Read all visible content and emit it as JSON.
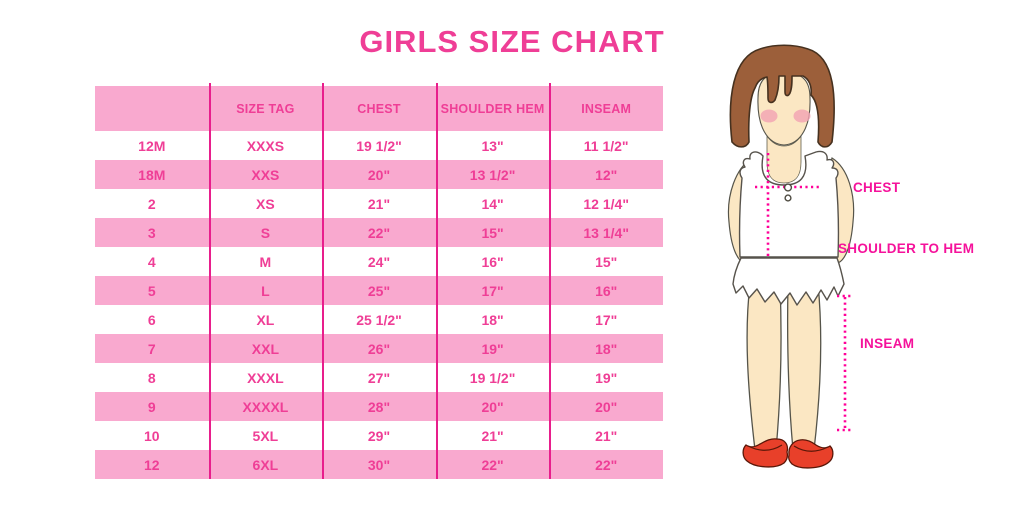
{
  "title": "GIRLS SIZE CHART",
  "chart_data": {
    "type": "table",
    "title": "GIRLS SIZE CHART",
    "columns": [
      "",
      "SIZE TAG",
      "CHEST",
      "SHOULDER HEM",
      "INSEAM"
    ],
    "rows": [
      [
        "12M",
        "XXXS",
        "19 1/2\"",
        "13\"",
        "11 1/2\""
      ],
      [
        "18M",
        "XXS",
        "20\"",
        "13 1/2\"",
        "12\""
      ],
      [
        "2",
        "XS",
        "21\"",
        "14\"",
        "12 1/4\""
      ],
      [
        "3",
        "S",
        "22\"",
        "15\"",
        "13 1/4\""
      ],
      [
        "4",
        "M",
        "24\"",
        "16\"",
        "15\""
      ],
      [
        "5",
        "L",
        "25\"",
        "17\"",
        "16\""
      ],
      [
        "6",
        "XL",
        "25 1/2\"",
        "18\"",
        "17\""
      ],
      [
        "7",
        "XXL",
        "26\"",
        "19\"",
        "18\""
      ],
      [
        "8",
        "XXXL",
        "27\"",
        "19 1/2\"",
        "19\""
      ],
      [
        "9",
        "XXXXL",
        "28\"",
        "20\"",
        "20\""
      ],
      [
        "10",
        "5XL",
        "29\"",
        "21\"",
        "21\""
      ],
      [
        "12",
        "6XL",
        "30\"",
        "22\"",
        "22\""
      ]
    ],
    "layout_hints": "rows alternate white/pink starting with white under pink header; magenta column separator lines"
  },
  "diagram": {
    "chest_label": "CHEST",
    "shoulder_to_hem_label": "SHOULDER TO HEM",
    "inseam_label": "INSEAM"
  },
  "colors": {
    "accent_text": "#EF3E96",
    "row_pink": "#F9A9CF",
    "grid_line": "#E81E8C",
    "measure_line": "#FF0098",
    "hair_brown": "#9C5F3A",
    "skin": "#FBE7C3",
    "blush": "#F2A3B3",
    "shoe_red": "#E8402A",
    "background": "#FFFFFF"
  }
}
